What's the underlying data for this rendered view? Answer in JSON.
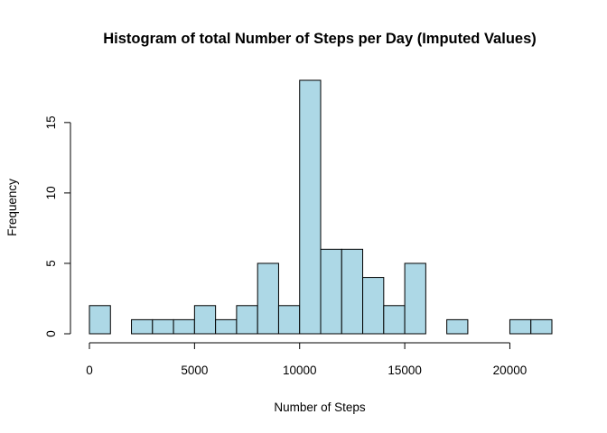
{
  "chart_data": {
    "type": "bar",
    "title": "Histogram of total Number of Steps per Day (Imputed Values)",
    "xlabel": "Number of Steps",
    "ylabel": "Frequency",
    "bar_color": "#ADD8E6",
    "border_color": "#000000",
    "xlim": [
      0,
      22000
    ],
    "ylim": [
      0,
      18
    ],
    "x_ticks": [
      0,
      5000,
      10000,
      15000,
      20000
    ],
    "x_tick_labels": [
      "0",
      "5000",
      "10000",
      "15000",
      "20000"
    ],
    "y_ticks": [
      0,
      5,
      10,
      15
    ],
    "y_tick_labels": [
      "0",
      "5",
      "10",
      "15"
    ],
    "bin_width": 1000,
    "bins": [
      {
        "start": 0,
        "end": 1000,
        "count": 2
      },
      {
        "start": 1000,
        "end": 2000,
        "count": 0
      },
      {
        "start": 2000,
        "end": 3000,
        "count": 1
      },
      {
        "start": 3000,
        "end": 4000,
        "count": 1
      },
      {
        "start": 4000,
        "end": 5000,
        "count": 1
      },
      {
        "start": 5000,
        "end": 6000,
        "count": 2
      },
      {
        "start": 6000,
        "end": 7000,
        "count": 1
      },
      {
        "start": 7000,
        "end": 8000,
        "count": 2
      },
      {
        "start": 8000,
        "end": 9000,
        "count": 5
      },
      {
        "start": 9000,
        "end": 10000,
        "count": 2
      },
      {
        "start": 10000,
        "end": 11000,
        "count": 18
      },
      {
        "start": 11000,
        "end": 12000,
        "count": 6
      },
      {
        "start": 12000,
        "end": 13000,
        "count": 6
      },
      {
        "start": 13000,
        "end": 14000,
        "count": 4
      },
      {
        "start": 14000,
        "end": 15000,
        "count": 2
      },
      {
        "start": 15000,
        "end": 16000,
        "count": 5
      },
      {
        "start": 16000,
        "end": 17000,
        "count": 0
      },
      {
        "start": 17000,
        "end": 18000,
        "count": 1
      },
      {
        "start": 18000,
        "end": 19000,
        "count": 0
      },
      {
        "start": 19000,
        "end": 20000,
        "count": 0
      },
      {
        "start": 20000,
        "end": 21000,
        "count": 1
      },
      {
        "start": 21000,
        "end": 22000,
        "count": 1
      }
    ]
  }
}
